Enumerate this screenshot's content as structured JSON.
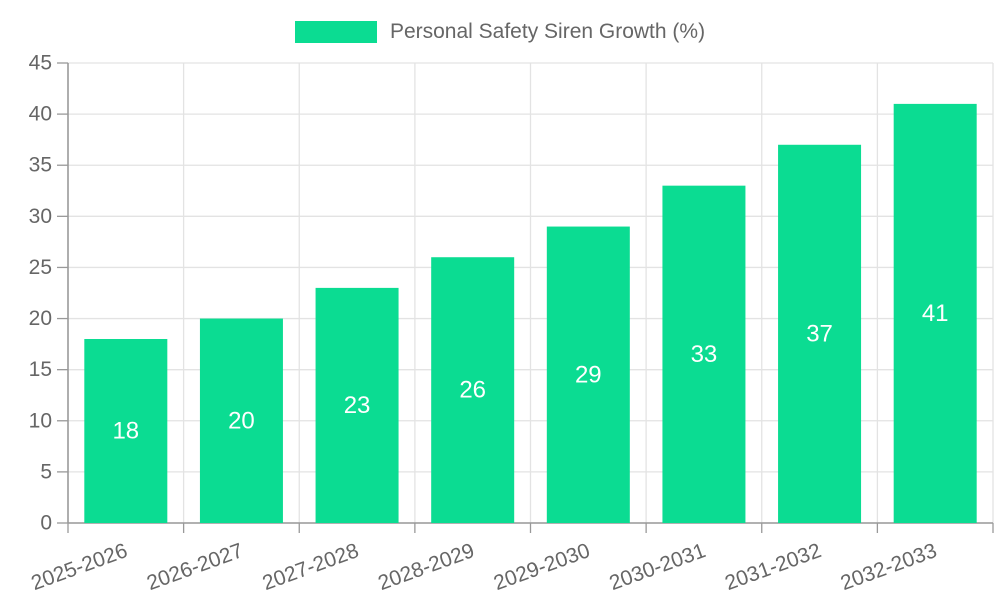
{
  "chart_data": {
    "type": "bar",
    "title": "Personal Safety Siren Growth (%)",
    "categories": [
      "2025-2026",
      "2026-2027",
      "2027-2028",
      "2028-2029",
      "2029-2030",
      "2030-2031",
      "2031-2032",
      "2032-2033"
    ],
    "series": [
      {
        "name": "Personal Safety Siren Growth (%)",
        "values": [
          18,
          20,
          23,
          26,
          29,
          33,
          37,
          41
        ],
        "color": "#0bdc92"
      }
    ],
    "xlabel": "",
    "ylabel": "",
    "ylim": [
      0,
      45
    ],
    "yticks": [
      0,
      5,
      10,
      15,
      20,
      25,
      30,
      35,
      40,
      45
    ],
    "grid": true,
    "legend_position": "top",
    "value_labels_shown": true,
    "colors": {
      "bar": "#0bdc92",
      "value_label": "#ffffff",
      "axis_text": "#666666",
      "grid_line": "#e3e3e3",
      "axis_line": "#999999",
      "background": "#ffffff"
    }
  }
}
